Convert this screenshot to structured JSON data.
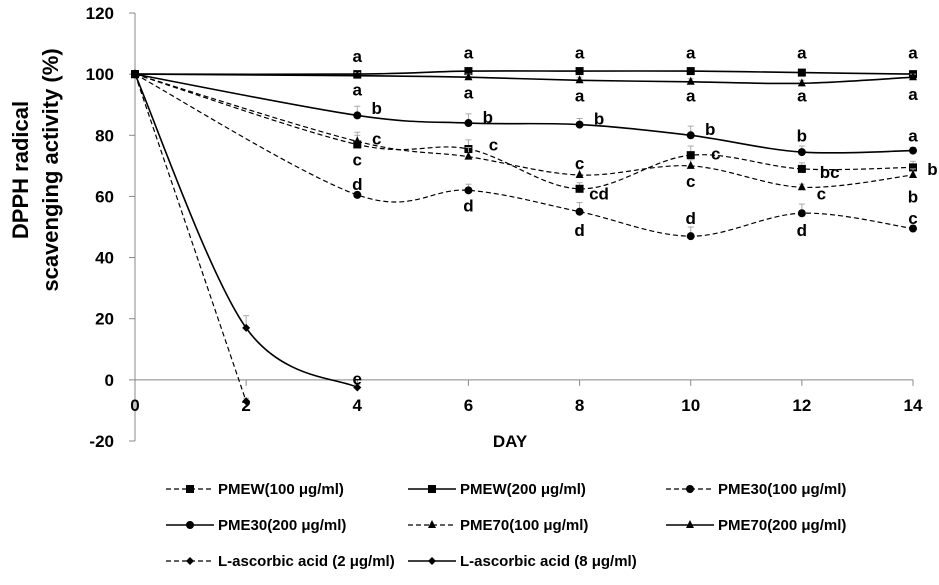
{
  "chart_data": {
    "type": "line",
    "xlabel": "DAY",
    "ylabel_lines": [
      "DPPH radical",
      "scavenging activity (%)"
    ],
    "xlim": [
      0,
      14
    ],
    "ylim": [
      -20,
      120
    ],
    "x_ticks": [
      0,
      2,
      4,
      6,
      8,
      10,
      12,
      14
    ],
    "y_ticks": [
      -20,
      0,
      20,
      40,
      60,
      80,
      100,
      120
    ],
    "grid": false,
    "legend_position": "bottom",
    "series": [
      {
        "name": "PMEW(100 μg/ml)",
        "style": "dashed",
        "marker": "square",
        "x": [
          0,
          4,
          6,
          8,
          10,
          12,
          14
        ],
        "y": [
          100,
          77,
          75.5,
          62.5,
          73.5,
          69,
          69.5
        ],
        "err": [
          0,
          3,
          3,
          2,
          3,
          2,
          2
        ]
      },
      {
        "name": "PMEW(200 μg/ml)",
        "style": "solid",
        "marker": "square",
        "x": [
          0,
          4,
          6,
          8,
          10,
          12,
          14
        ],
        "y": [
          100,
          100,
          101,
          101,
          101,
          100.5,
          100
        ],
        "err": [
          0,
          1,
          1,
          1,
          1,
          1,
          1
        ]
      },
      {
        "name": "PME30(100 μg/ml)",
        "style": "dashed",
        "marker": "circle",
        "x": [
          0,
          4,
          6,
          8,
          10,
          12,
          14
        ],
        "y": [
          100,
          60.5,
          62,
          55,
          47,
          54.5,
          49.5
        ],
        "err": [
          0,
          1,
          2,
          3,
          3,
          3,
          1
        ]
      },
      {
        "name": "PME30(200 μg/ml)",
        "style": "solid",
        "marker": "circle",
        "x": [
          0,
          4,
          6,
          8,
          10,
          12,
          14
        ],
        "y": [
          100,
          86.5,
          84,
          83.5,
          80,
          74.5,
          75
        ],
        "err": [
          0,
          3,
          3,
          2,
          3,
          2,
          1
        ]
      },
      {
        "name": "PME70(100 μg/ml)",
        "style": "dashed",
        "marker": "triangle",
        "x": [
          0,
          4,
          6,
          8,
          10,
          12,
          14
        ],
        "y": [
          100,
          78,
          73,
          67,
          70,
          63,
          67
        ],
        "err": [
          0,
          3,
          3,
          2,
          2,
          1,
          2
        ]
      },
      {
        "name": "PME70(200 μg/ml)",
        "style": "solid",
        "marker": "triangle",
        "x": [
          0,
          4,
          6,
          8,
          10,
          12,
          14
        ],
        "y": [
          100,
          99.5,
          99,
          98,
          97.5,
          97,
          99
        ],
        "err": [
          0,
          1,
          1,
          1,
          1,
          1,
          1
        ]
      },
      {
        "name": "L-ascorbic acid (2 μg/ml)",
        "style": "dashed",
        "marker": "diamond",
        "x": [
          0,
          2
        ],
        "y": [
          100,
          -7
        ],
        "err": [
          0,
          1
        ]
      },
      {
        "name": "L-ascorbic acid (8 μg/ml)",
        "style": "solid",
        "marker": "diamond",
        "x": [
          0,
          2,
          4
        ],
        "y": [
          100,
          17,
          -2.5
        ],
        "err": [
          0,
          4,
          1
        ]
      }
    ],
    "annotations": [
      {
        "text": "a",
        "x": 4,
        "y": 106
      },
      {
        "text": "a",
        "x": 6,
        "y": 107
      },
      {
        "text": "a",
        "x": 8,
        "y": 107
      },
      {
        "text": "a",
        "x": 10,
        "y": 107
      },
      {
        "text": "a",
        "x": 12,
        "y": 107
      },
      {
        "text": "a",
        "x": 14,
        "y": 107
      },
      {
        "text": "a",
        "x": 4,
        "y": 95
      },
      {
        "text": "a",
        "x": 6,
        "y": 94
      },
      {
        "text": "a",
        "x": 8,
        "y": 93
      },
      {
        "text": "a",
        "x": 10,
        "y": 93
      },
      {
        "text": "a",
        "x": 12,
        "y": 93
      },
      {
        "text": "a",
        "x": 14,
        "y": 93.5
      },
      {
        "text": "b",
        "x": 4.35,
        "y": 89
      },
      {
        "text": "b",
        "x": 6.35,
        "y": 86
      },
      {
        "text": "b",
        "x": 8.35,
        "y": 85.5
      },
      {
        "text": "b",
        "x": 10.35,
        "y": 82
      },
      {
        "text": "b",
        "x": 12,
        "y": 80
      },
      {
        "text": "a",
        "x": 14,
        "y": 80
      },
      {
        "text": "c",
        "x": 4.35,
        "y": 79
      },
      {
        "text": "c",
        "x": 6.45,
        "y": 77
      },
      {
        "text": "c",
        "x": 8,
        "y": 71
      },
      {
        "text": "c",
        "x": 10.45,
        "y": 74
      },
      {
        "text": "bc",
        "x": 12.5,
        "y": 68
      },
      {
        "text": "b",
        "x": 14.35,
        "y": 69
      },
      {
        "text": "c",
        "x": 4,
        "y": 72
      },
      {
        "text": "cd",
        "x": 8.35,
        "y": 61
      },
      {
        "text": "c",
        "x": 10,
        "y": 65
      },
      {
        "text": "c",
        "x": 12.35,
        "y": 61
      },
      {
        "text": "b",
        "x": 14,
        "y": 60
      },
      {
        "text": "d",
        "x": 4,
        "y": 64
      },
      {
        "text": "d",
        "x": 6,
        "y": 57
      },
      {
        "text": "d",
        "x": 8,
        "y": 49
      },
      {
        "text": "d",
        "x": 10,
        "y": 53
      },
      {
        "text": "d",
        "x": 12,
        "y": 49
      },
      {
        "text": "c",
        "x": 14,
        "y": 53
      },
      {
        "text": "e",
        "x": 4,
        "y": 0.5
      }
    ]
  }
}
